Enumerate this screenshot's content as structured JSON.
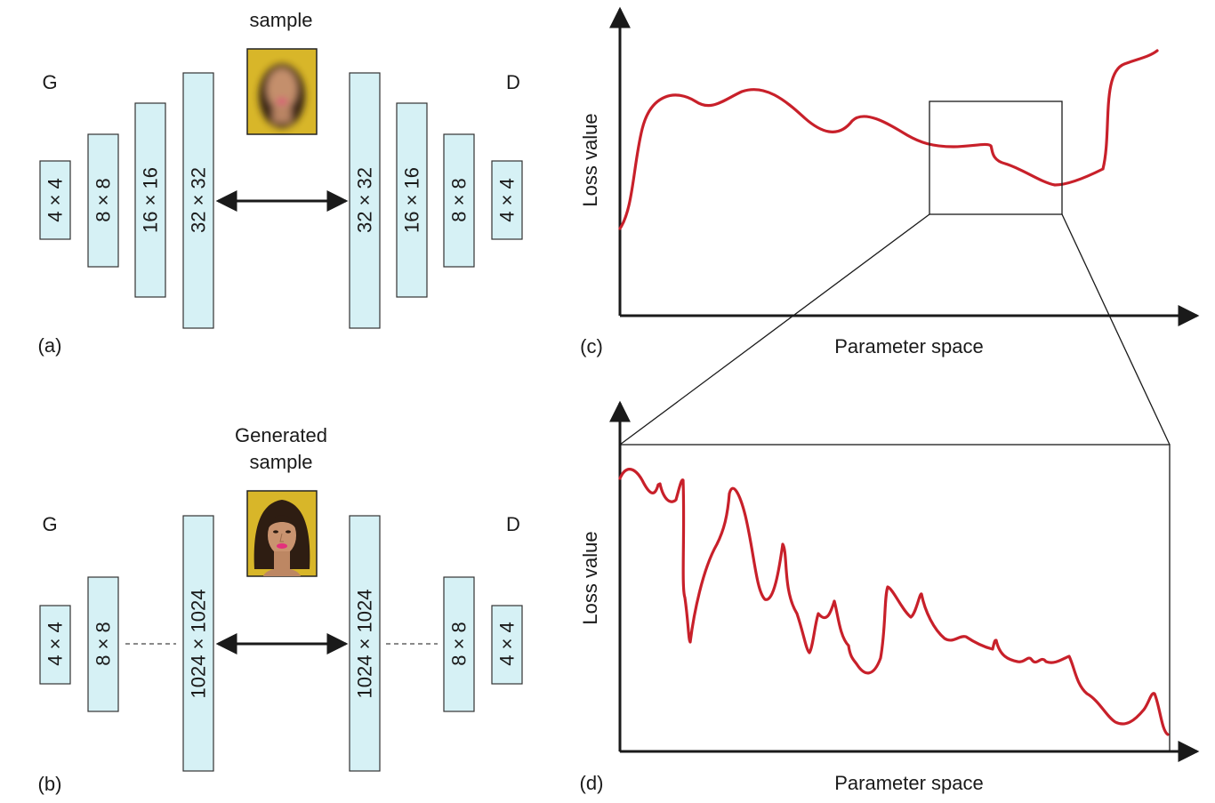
{
  "panel_a": {
    "label": "(a)",
    "top_caption": "sample",
    "generator_label": "G",
    "discriminator_label": "D",
    "generator_layers": [
      "4 × 4",
      "8 × 8",
      "16 × 16",
      "32 × 32"
    ],
    "discriminator_layers": [
      "32 × 32",
      "16 × 16",
      "8 × 8",
      "4 × 4"
    ],
    "sample_image": "blurry-face-thumbnail"
  },
  "panel_b": {
    "label": "(b)",
    "top_caption_line1": "Generated",
    "top_caption_line2": "sample",
    "generator_label": "G",
    "discriminator_label": "D",
    "generator_layers": [
      "4 × 4",
      "8 × 8",
      "1024 × 1024"
    ],
    "discriminator_layers": [
      "1024 × 1024",
      "8 × 8",
      "4 × 4"
    ],
    "sample_image": "sharp-face-thumbnail"
  },
  "panel_c": {
    "label": "(c)",
    "ylabel": "Loss value",
    "xlabel": "Parameter space"
  },
  "panel_d": {
    "label": "(d)",
    "ylabel": "Loss value",
    "xlabel": "Parameter space"
  },
  "colors": {
    "layer_fill": "#d6f1f5",
    "layer_stroke": "#333333",
    "curve": "#c8202a",
    "axis": "#1a1a1a",
    "face_bg": "#d8b629"
  }
}
